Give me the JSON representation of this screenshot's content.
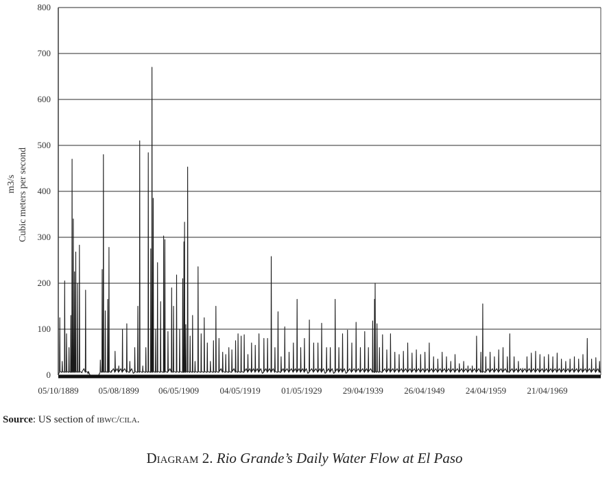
{
  "chart_data": {
    "type": "line",
    "ylabel_unit": "m3/s",
    "ylabel": "Cubic meters per second",
    "ylim": [
      0,
      800
    ],
    "y_ticks": [
      "0",
      "100",
      "200",
      "300",
      "400",
      "500",
      "600",
      "700",
      "800"
    ],
    "x_ticks": [
      "05/10/1889",
      "05/08/1899",
      "06/05/1909",
      "04/05/1919",
      "01/05/1929",
      "29/04/1939",
      "26/04/1949",
      "24/04/1959",
      "21/04/1969"
    ],
    "xlim": [
      1889.76,
      1978.0
    ],
    "grid": true,
    "series": [
      {
        "peaks": [
          [
            1890.0,
            125
          ],
          [
            1890.4,
            30
          ],
          [
            1890.8,
            205
          ],
          [
            1891.1,
            90
          ],
          [
            1891.5,
            60
          ],
          [
            1891.8,
            130
          ],
          [
            1892.0,
            470
          ],
          [
            1892.2,
            340
          ],
          [
            1892.4,
            225
          ],
          [
            1892.6,
            268
          ],
          [
            1892.9,
            200
          ],
          [
            1893.2,
            283
          ],
          [
            1893.6,
            5
          ],
          [
            1894.2,
            185
          ],
          [
            1894.6,
            3
          ],
          [
            1896.6,
            33
          ],
          [
            1896.9,
            230
          ],
          [
            1897.1,
            480
          ],
          [
            1897.4,
            140
          ],
          [
            1897.8,
            165
          ],
          [
            1898.0,
            278
          ],
          [
            1898.4,
            10
          ],
          [
            1899.0,
            52
          ],
          [
            1899.6,
            20
          ],
          [
            1900.2,
            100
          ],
          [
            1900.9,
            112
          ],
          [
            1901.4,
            30
          ],
          [
            1902.2,
            60
          ],
          [
            1902.7,
            150
          ],
          [
            1903.0,
            510
          ],
          [
            1903.5,
            20
          ],
          [
            1904.0,
            60
          ],
          [
            1904.4,
            484
          ],
          [
            1904.8,
            275
          ],
          [
            1905.0,
            670
          ],
          [
            1905.2,
            385
          ],
          [
            1905.6,
            100
          ],
          [
            1905.9,
            245
          ],
          [
            1906.4,
            160
          ],
          [
            1906.9,
            303
          ],
          [
            1907.1,
            295
          ],
          [
            1907.6,
            95
          ],
          [
            1908.2,
            190
          ],
          [
            1908.5,
            150
          ],
          [
            1909.0,
            218
          ],
          [
            1909.5,
            100
          ],
          [
            1910.0,
            210
          ],
          [
            1910.2,
            290
          ],
          [
            1910.3,
            333
          ],
          [
            1910.5,
            110
          ],
          [
            1910.8,
            453
          ],
          [
            1911.2,
            85
          ],
          [
            1911.6,
            130
          ],
          [
            1912.0,
            30
          ],
          [
            1912.5,
            236
          ],
          [
            1913.0,
            90
          ],
          [
            1913.5,
            125
          ],
          [
            1914.0,
            70
          ],
          [
            1914.5,
            30
          ],
          [
            1915.0,
            75
          ],
          [
            1915.4,
            150
          ],
          [
            1915.9,
            80
          ],
          [
            1916.5,
            50
          ],
          [
            1917.0,
            45
          ],
          [
            1917.5,
            60
          ],
          [
            1918.0,
            55
          ],
          [
            1918.6,
            75
          ],
          [
            1919.0,
            90
          ],
          [
            1919.5,
            85
          ],
          [
            1920.0,
            88
          ],
          [
            1920.6,
            45
          ],
          [
            1921.2,
            70
          ],
          [
            1921.8,
            65
          ],
          [
            1922.4,
            90
          ],
          [
            1923.2,
            80
          ],
          [
            1923.8,
            80
          ],
          [
            1924.4,
            258
          ],
          [
            1925.0,
            60
          ],
          [
            1925.5,
            138
          ],
          [
            1926.0,
            40
          ],
          [
            1926.6,
            105
          ],
          [
            1927.3,
            50
          ],
          [
            1928.0,
            70
          ],
          [
            1928.6,
            165
          ],
          [
            1929.2,
            60
          ],
          [
            1929.8,
            80
          ],
          [
            1930.6,
            120
          ],
          [
            1931.3,
            70
          ],
          [
            1932.0,
            70
          ],
          [
            1932.6,
            113
          ],
          [
            1933.4,
            60
          ],
          [
            1934.0,
            60
          ],
          [
            1934.8,
            165
          ],
          [
            1935.4,
            60
          ],
          [
            1936.0,
            90
          ],
          [
            1936.8,
            98
          ],
          [
            1937.5,
            70
          ],
          [
            1938.2,
            115
          ],
          [
            1938.9,
            60
          ],
          [
            1939.6,
            95
          ],
          [
            1940.2,
            60
          ],
          [
            1940.9,
            118
          ],
          [
            1941.2,
            165
          ],
          [
            1941.3,
            200
          ],
          [
            1941.6,
            112
          ],
          [
            1942.0,
            60
          ],
          [
            1942.5,
            88
          ],
          [
            1943.2,
            55
          ],
          [
            1943.8,
            90
          ],
          [
            1944.5,
            50
          ],
          [
            1945.2,
            45
          ],
          [
            1945.9,
            52
          ],
          [
            1946.6,
            70
          ],
          [
            1947.3,
            48
          ],
          [
            1948.0,
            55
          ],
          [
            1948.7,
            45
          ],
          [
            1949.4,
            50
          ],
          [
            1950.1,
            70
          ],
          [
            1950.8,
            40
          ],
          [
            1951.5,
            35
          ],
          [
            1952.2,
            50
          ],
          [
            1952.9,
            40
          ],
          [
            1953.6,
            30
          ],
          [
            1954.3,
            45
          ],
          [
            1955.0,
            25
          ],
          [
            1955.7,
            30
          ],
          [
            1956.4,
            20
          ],
          [
            1957.1,
            20
          ],
          [
            1957.8,
            85
          ],
          [
            1958.5,
            50
          ],
          [
            1958.8,
            155
          ],
          [
            1959.3,
            40
          ],
          [
            1960.0,
            50
          ],
          [
            1960.7,
            40
          ],
          [
            1961.4,
            55
          ],
          [
            1962.1,
            60
          ],
          [
            1962.8,
            40
          ],
          [
            1963.2,
            90
          ],
          [
            1963.9,
            40
          ],
          [
            1964.6,
            30
          ],
          [
            1965.3,
            15
          ],
          [
            1966.0,
            40
          ],
          [
            1966.7,
            48
          ],
          [
            1967.4,
            52
          ],
          [
            1968.1,
            45
          ],
          [
            1968.8,
            40
          ],
          [
            1969.5,
            45
          ],
          [
            1970.2,
            40
          ],
          [
            1970.9,
            48
          ],
          [
            1971.6,
            35
          ],
          [
            1972.3,
            30
          ],
          [
            1973.0,
            35
          ],
          [
            1973.7,
            40
          ],
          [
            1974.4,
            35
          ],
          [
            1975.1,
            45
          ],
          [
            1975.8,
            80
          ],
          [
            1976.5,
            35
          ],
          [
            1977.2,
            38
          ],
          [
            1977.8,
            30
          ]
        ]
      }
    ]
  },
  "source": {
    "label": "Source",
    "text_before": ": US section of ",
    "org": "ibwc/cila",
    "text_after": "."
  },
  "caption": {
    "prefix": "Diagram 2. ",
    "title": "Rio Grande’s Daily Water Flow at El Paso"
  }
}
